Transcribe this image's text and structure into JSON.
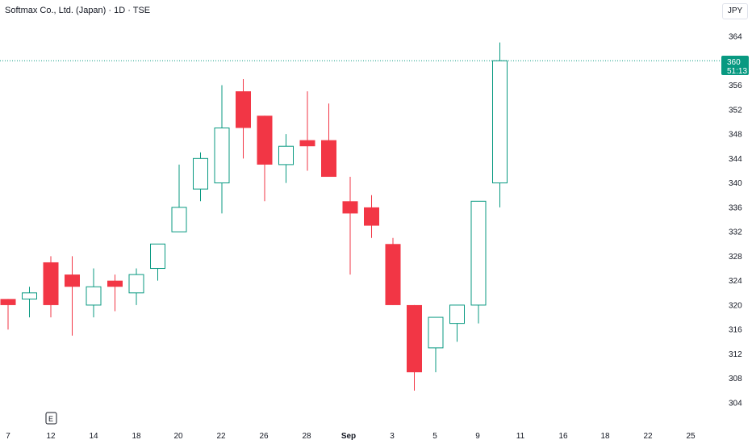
{
  "header": {
    "title": "Softmax Co., Ltd. (Japan) · 1D · TSE",
    "currency": "JPY"
  },
  "price_badge": {
    "price": "360",
    "countdown": "51:13",
    "color": "#089981"
  },
  "event_marker": {
    "label": "E"
  },
  "colors": {
    "up": "#089981",
    "down": "#f23645",
    "background": "#ffffff",
    "axis_text": "#131722"
  },
  "chart_data": {
    "type": "candlestick",
    "title": "Softmax Co., Ltd. (Japan) · 1D · TSE",
    "ylim": [
      301,
      367
    ],
    "y_ticks": [
      304,
      308,
      312,
      316,
      320,
      324,
      328,
      332,
      336,
      340,
      344,
      348,
      352,
      356,
      360,
      364
    ],
    "x_ticks": [
      "7",
      "12",
      "14",
      "18",
      "20",
      "22",
      "26",
      "28",
      "Sep",
      "3",
      "5",
      "9",
      "11",
      "16",
      "18",
      "22",
      "25"
    ],
    "last_price": 360,
    "candles": [
      {
        "open": 321,
        "high": 321,
        "low": 316,
        "close": 320,
        "style": "solid"
      },
      {
        "open": 321,
        "high": 323,
        "low": 318,
        "close": 322,
        "style": "hollow"
      },
      {
        "open": 327,
        "high": 328,
        "low": 318,
        "close": 320,
        "style": "solid"
      },
      {
        "open": 325,
        "high": 328,
        "low": 315,
        "close": 323,
        "style": "solid"
      },
      {
        "open": 320,
        "high": 326,
        "low": 318,
        "close": 323,
        "style": "hollow"
      },
      {
        "open": 324,
        "high": 325,
        "low": 319,
        "close": 323,
        "style": "solid"
      },
      {
        "open": 322,
        "high": 326,
        "low": 320,
        "close": 325,
        "style": "hollow"
      },
      {
        "open": 326,
        "high": 330,
        "low": 324,
        "close": 330,
        "style": "hollow"
      },
      {
        "open": 332,
        "high": 343,
        "low": 332,
        "close": 336,
        "style": "hollow"
      },
      {
        "open": 339,
        "high": 345,
        "low": 337,
        "close": 344,
        "style": "hollow"
      },
      {
        "open": 340,
        "high": 356,
        "low": 335,
        "close": 349,
        "style": "hollow"
      },
      {
        "open": 355,
        "high": 357,
        "low": 344,
        "close": 349,
        "style": "solid"
      },
      {
        "open": 351,
        "high": 351,
        "low": 337,
        "close": 343,
        "style": "solid"
      },
      {
        "open": 343,
        "high": 348,
        "low": 340,
        "close": 346,
        "style": "hollow"
      },
      {
        "open": 347,
        "high": 355,
        "low": 342,
        "close": 346,
        "style": "solid"
      },
      {
        "open": 347,
        "high": 353,
        "low": 341,
        "close": 341,
        "style": "solid"
      },
      {
        "open": 337,
        "high": 341,
        "low": 325,
        "close": 335,
        "style": "solid"
      },
      {
        "open": 336,
        "high": 338,
        "low": 331,
        "close": 333,
        "style": "solid"
      },
      {
        "open": 330,
        "high": 331,
        "low": 320,
        "close": 320,
        "style": "solid"
      },
      {
        "open": 320,
        "high": 320,
        "low": 306,
        "close": 309,
        "style": "solid"
      },
      {
        "open": 313,
        "high": 318,
        "low": 309,
        "close": 318,
        "style": "hollow"
      },
      {
        "open": 317,
        "high": 320,
        "low": 314,
        "close": 320,
        "style": "hollow"
      },
      {
        "open": 320,
        "high": 337,
        "low": 317,
        "close": 337,
        "style": "hollow"
      },
      {
        "open": 340,
        "high": 363,
        "low": 336,
        "close": 360,
        "style": "hollow"
      }
    ]
  }
}
